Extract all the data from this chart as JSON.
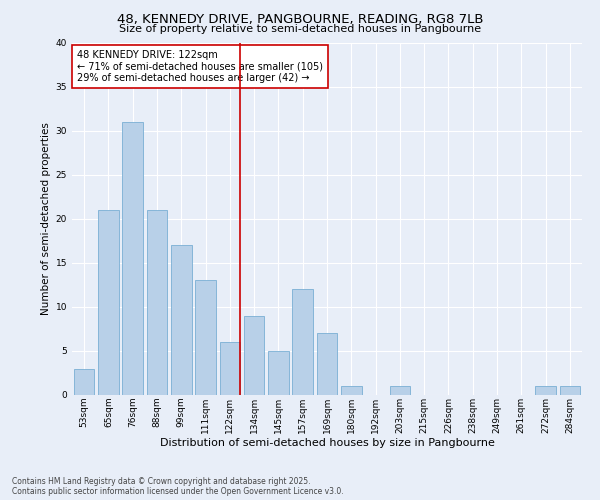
{
  "title": "48, KENNEDY DRIVE, PANGBOURNE, READING, RG8 7LB",
  "subtitle": "Size of property relative to semi-detached houses in Pangbourne",
  "xlabel": "Distribution of semi-detached houses by size in Pangbourne",
  "ylabel": "Number of semi-detached properties",
  "categories": [
    "53sqm",
    "65sqm",
    "76sqm",
    "88sqm",
    "99sqm",
    "111sqm",
    "122sqm",
    "134sqm",
    "145sqm",
    "157sqm",
    "169sqm",
    "180sqm",
    "192sqm",
    "203sqm",
    "215sqm",
    "226sqm",
    "238sqm",
    "249sqm",
    "261sqm",
    "272sqm",
    "284sqm"
  ],
  "values": [
    3,
    21,
    31,
    21,
    17,
    13,
    6,
    9,
    5,
    12,
    7,
    1,
    0,
    1,
    0,
    0,
    0,
    0,
    0,
    1,
    1
  ],
  "bar_color": "#b8d0e8",
  "bar_edge_color": "#7aafd4",
  "highlight_index": 6,
  "highlight_color": "#cc0000",
  "annotation_line1": "48 KENNEDY DRIVE: 122sqm",
  "annotation_line2": "← 71% of semi-detached houses are smaller (105)",
  "annotation_line3": "29% of semi-detached houses are larger (42) →",
  "annotation_box_color": "#ffffff",
  "annotation_box_edge_color": "#cc0000",
  "footer_line1": "Contains HM Land Registry data © Crown copyright and database right 2025.",
  "footer_line2": "Contains public sector information licensed under the Open Government Licence v3.0.",
  "bg_color": "#e8eef8",
  "plot_bg_color": "#e8eef8",
  "ylim": [
    0,
    40
  ],
  "title_fontsize": 9.5,
  "subtitle_fontsize": 8,
  "xlabel_fontsize": 8,
  "ylabel_fontsize": 7.5,
  "tick_fontsize": 6.5,
  "annotation_fontsize": 7,
  "footer_fontsize": 5.5
}
